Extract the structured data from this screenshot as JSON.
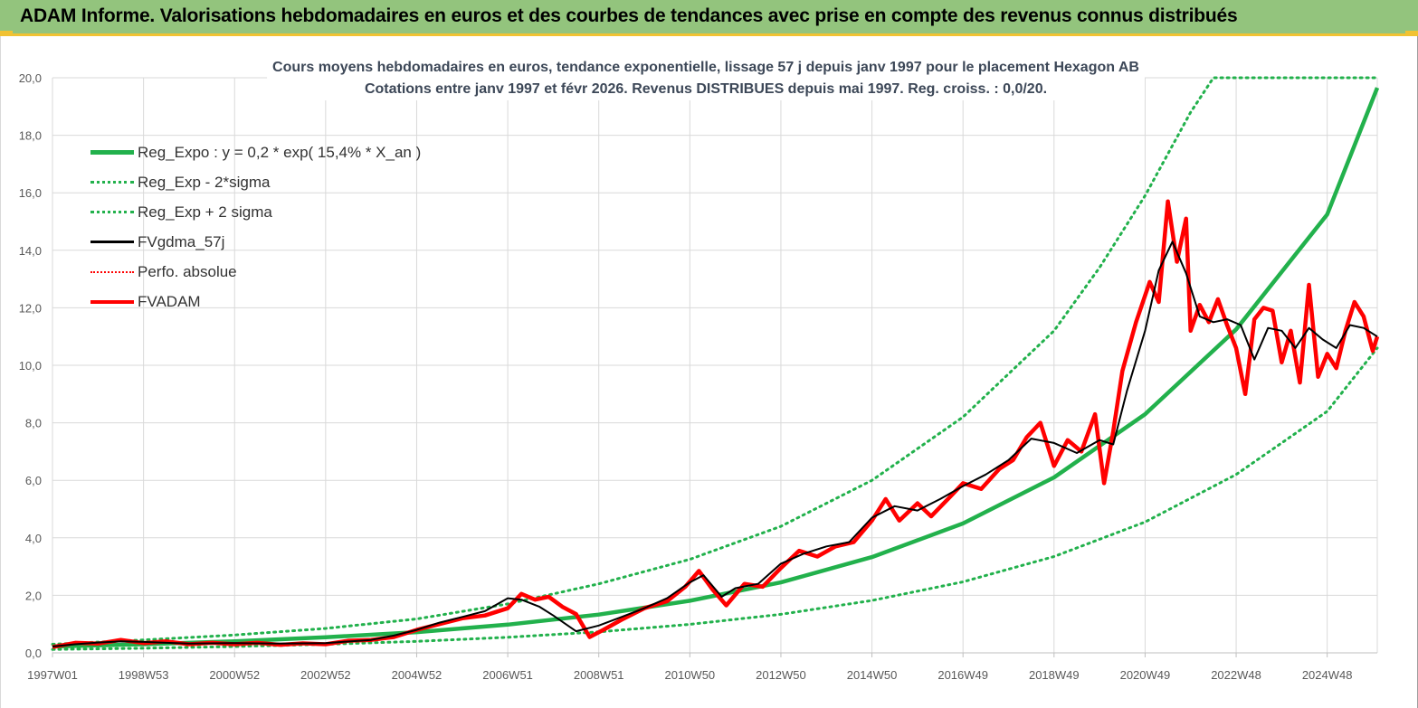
{
  "header": {
    "title": "ADAM Informe. Valorisations hebdomadaires en euros et des courbes de tendances avec prise en compte des revenus connus distribués"
  },
  "colors": {
    "header_bg": "#93c47d",
    "accent_yellow": "#f1c232",
    "reg_expo": "#22b14c",
    "sigma_bands": "#22b14c",
    "fvgdma": "#000000",
    "perfo": "#ff0000",
    "fvadam": "#ff0000"
  },
  "chart_data": {
    "type": "line",
    "title_line1": "Cours moyens hebdomadaires en euros, tendance exponentielle, lissage 57 j depuis janv 1997 pour le placement Hexagon AB",
    "title_line2": "Cotations entre janv 1997 et févr 2026. Revenus DISTRIBUES depuis mai 1997. Reg. croiss. : 0,0/20.",
    "xlabel": "",
    "ylabel": "",
    "ylim": [
      0,
      20
    ],
    "xlim": [
      1997.0,
      2026.1
    ],
    "y_ticks": [
      "0,0",
      "2,0",
      "4,0",
      "6,0",
      "8,0",
      "10,0",
      "12,0",
      "14,0",
      "16,0",
      "18,0",
      "20,0"
    ],
    "x_ticks": [
      {
        "label": "1997W01",
        "x": 1997.0
      },
      {
        "label": "1998W53",
        "x": 1999.0
      },
      {
        "label": "2000W52",
        "x": 2001.0
      },
      {
        "label": "2002W52",
        "x": 2003.0
      },
      {
        "label": "2004W52",
        "x": 2005.0
      },
      {
        "label": "2006W51",
        "x": 2007.0
      },
      {
        "label": "2008W51",
        "x": 2009.0
      },
      {
        "label": "2010W50",
        "x": 2011.0
      },
      {
        "label": "2012W50",
        "x": 2013.0
      },
      {
        "label": "2014W50",
        "x": 2015.0
      },
      {
        "label": "2016W49",
        "x": 2017.0
      },
      {
        "label": "2018W49",
        "x": 2019.0
      },
      {
        "label": "2020W49",
        "x": 2021.0
      },
      {
        "label": "2022W48",
        "x": 2023.0
      },
      {
        "label": "2024W48",
        "x": 2025.0
      }
    ],
    "grid": true,
    "legend_position": "top-left",
    "series": [
      {
        "name": "Reg_Expo : y = 0,2 * exp( 15,4% *  X_an )",
        "style": "thick-solid",
        "color": "#22b14c",
        "x": [
          1997.0,
          1999.0,
          2001.0,
          2003.0,
          2005.0,
          2007.0,
          2009.0,
          2011.0,
          2013.0,
          2015.0,
          2017.0,
          2019.0,
          2021.0,
          2023.0,
          2025.0,
          2026.1
        ],
        "y": [
          0.22,
          0.3,
          0.4,
          0.54,
          0.72,
          0.98,
          1.33,
          1.81,
          2.45,
          3.33,
          4.5,
          6.1,
          8.3,
          11.25,
          15.25,
          19.65
        ]
      },
      {
        "name": "Reg_Exp - 2*sigma",
        "style": "dotted",
        "color": "#22b14c",
        "x": [
          1997.0,
          1999.0,
          2001.0,
          2003.0,
          2005.0,
          2007.0,
          2009.0,
          2011.0,
          2013.0,
          2015.0,
          2017.0,
          2019.0,
          2021.0,
          2023.0,
          2025.0,
          2026.1
        ],
        "y": [
          0.12,
          0.16,
          0.22,
          0.3,
          0.4,
          0.54,
          0.73,
          0.99,
          1.34,
          1.82,
          2.47,
          3.35,
          4.55,
          6.2,
          8.4,
          10.6
        ]
      },
      {
        "name": "Reg_Exp + 2 sigma",
        "style": "dotted",
        "color": "#22b14c",
        "x": [
          1997.0,
          1999.0,
          2001.0,
          2003.0,
          2005.0,
          2007.0,
          2009.0,
          2011.0,
          2013.0,
          2015.0,
          2017.0,
          2019.0,
          2020.0,
          2021.0,
          2022.0,
          2022.5,
          2026.1
        ],
        "y": [
          0.3,
          0.45,
          0.62,
          0.85,
          1.18,
          1.7,
          2.4,
          3.25,
          4.4,
          6.0,
          8.2,
          11.2,
          13.4,
          15.9,
          18.8,
          20.0,
          20.0
        ]
      },
      {
        "name": "FVgdma_57j",
        "style": "solid",
        "color": "#000000",
        "x": [
          1997.0,
          1997.5,
          1998.0,
          1998.5,
          1999.0,
          1999.5,
          2000.0,
          2001.0,
          2002.0,
          2003.0,
          2004.0,
          2004.5,
          2005.0,
          2005.5,
          2006.0,
          2006.5,
          2007.0,
          2007.3,
          2007.7,
          2008.0,
          2008.5,
          2009.0,
          2009.5,
          2010.0,
          2010.5,
          2011.0,
          2011.3,
          2011.7,
          2012.0,
          2012.5,
          2013.0,
          2013.5,
          2014.0,
          2014.5,
          2015.0,
          2015.5,
          2016.0,
          2016.5,
          2017.0,
          2017.5,
          2018.0,
          2018.5,
          2019.0,
          2019.5,
          2020.0,
          2020.3,
          2020.6,
          2021.0,
          2021.3,
          2021.6,
          2021.9,
          2022.2,
          2022.5,
          2022.8,
          2023.1,
          2023.4,
          2023.7,
          2024.0,
          2024.3,
          2024.6,
          2024.9,
          2025.2,
          2025.5,
          2025.8,
          2026.1
        ],
        "y": [
          0.22,
          0.3,
          0.36,
          0.4,
          0.38,
          0.35,
          0.32,
          0.34,
          0.32,
          0.34,
          0.45,
          0.6,
          0.8,
          1.05,
          1.25,
          1.45,
          1.9,
          1.85,
          1.6,
          1.3,
          0.75,
          0.95,
          1.25,
          1.55,
          1.9,
          2.45,
          2.7,
          1.95,
          2.25,
          2.4,
          3.1,
          3.45,
          3.7,
          3.85,
          4.7,
          5.1,
          4.95,
          5.35,
          5.8,
          6.2,
          6.7,
          7.45,
          7.3,
          6.95,
          7.4,
          7.25,
          9.1,
          11.2,
          13.3,
          14.3,
          13.2,
          11.7,
          11.5,
          11.6,
          11.4,
          10.2,
          11.3,
          11.2,
          10.6,
          11.3,
          10.9,
          10.6,
          11.4,
          11.3,
          11.0
        ]
      },
      {
        "name": "Perfo. absolue",
        "style": "dotted",
        "color": "#ff0000",
        "x": [],
        "y": []
      },
      {
        "name": "FVADAM",
        "style": "thick-solid",
        "color": "#ff0000",
        "x": [
          1997.0,
          1997.5,
          1998.0,
          1998.5,
          1999.0,
          1999.5,
          2000.0,
          2000.5,
          2001.0,
          2001.5,
          2002.0,
          2002.5,
          2003.0,
          2003.5,
          2004.0,
          2004.5,
          2005.0,
          2005.5,
          2006.0,
          2006.5,
          2007.0,
          2007.3,
          2007.6,
          2007.9,
          2008.2,
          2008.5,
          2008.8,
          2009.1,
          2009.5,
          2010.0,
          2010.5,
          2010.9,
          2011.2,
          2011.5,
          2011.8,
          2012.2,
          2012.6,
          2013.0,
          2013.4,
          2013.8,
          2014.2,
          2014.6,
          2015.0,
          2015.3,
          2015.6,
          2016.0,
          2016.3,
          2016.7,
          2017.0,
          2017.4,
          2017.8,
          2018.1,
          2018.4,
          2018.7,
          2019.0,
          2019.3,
          2019.6,
          2019.9,
          2020.1,
          2020.3,
          2020.5,
          2020.8,
          2021.1,
          2021.3,
          2021.5,
          2021.7,
          2021.9,
          2022.0,
          2022.2,
          2022.4,
          2022.6,
          2022.8,
          2023.0,
          2023.2,
          2023.4,
          2023.6,
          2023.8,
          2024.0,
          2024.2,
          2024.4,
          2024.6,
          2024.8,
          2025.0,
          2025.2,
          2025.4,
          2025.6,
          2025.8,
          2026.0,
          2026.1
        ],
        "y": [
          0.2,
          0.35,
          0.32,
          0.45,
          0.34,
          0.4,
          0.3,
          0.35,
          0.3,
          0.35,
          0.28,
          0.33,
          0.3,
          0.42,
          0.45,
          0.55,
          0.8,
          1.0,
          1.2,
          1.3,
          1.55,
          2.05,
          1.85,
          1.95,
          1.6,
          1.35,
          0.55,
          0.8,
          1.15,
          1.55,
          1.8,
          2.3,
          2.85,
          2.2,
          1.65,
          2.4,
          2.3,
          2.95,
          3.55,
          3.35,
          3.7,
          3.85,
          4.6,
          5.35,
          4.6,
          5.2,
          4.75,
          5.4,
          5.9,
          5.7,
          6.4,
          6.7,
          7.5,
          8.0,
          6.5,
          7.4,
          7.0,
          8.3,
          5.9,
          7.7,
          9.8,
          11.5,
          12.9,
          12.2,
          15.7,
          13.6,
          15.1,
          11.2,
          12.1,
          11.5,
          12.3,
          11.4,
          10.6,
          9.0,
          11.6,
          12.0,
          11.9,
          10.1,
          11.2,
          9.4,
          12.8,
          9.6,
          10.4,
          9.9,
          11.2,
          12.2,
          11.7,
          10.5,
          11.0
        ]
      }
    ]
  }
}
